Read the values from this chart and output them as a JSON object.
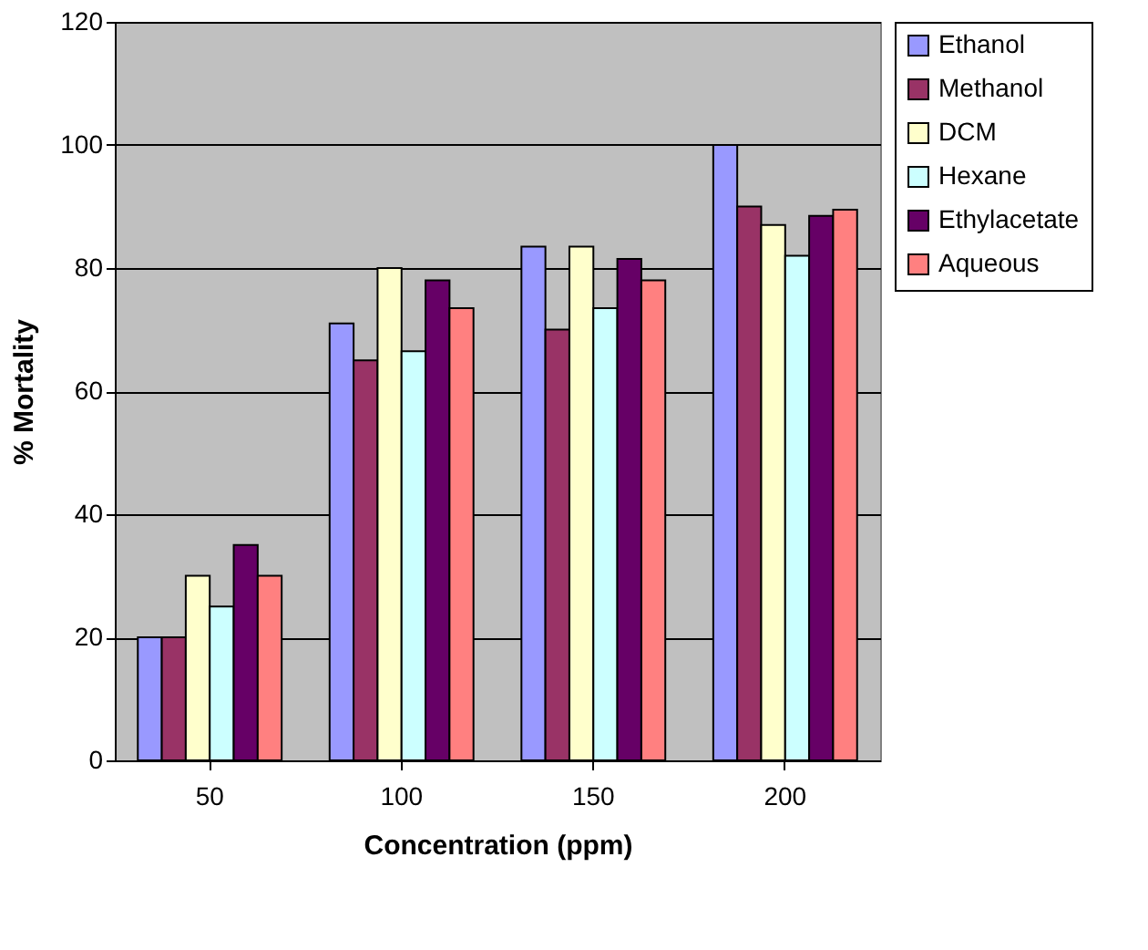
{
  "chart_data": {
    "type": "bar",
    "xlabel": "Concentration (ppm)",
    "ylabel": "% Mortality",
    "categories": [
      "50",
      "100",
      "150",
      "200"
    ],
    "series": [
      {
        "name": "Ethanol",
        "color": "#9999ff",
        "values": [
          20,
          71,
          83.5,
          100
        ]
      },
      {
        "name": "Methanol",
        "color": "#993366",
        "values": [
          20,
          65,
          70,
          90
        ]
      },
      {
        "name": "DCM",
        "color": "#ffffcc",
        "values": [
          30,
          80,
          83.5,
          87
        ]
      },
      {
        "name": "Hexane",
        "color": "#ccffff",
        "values": [
          25,
          66.5,
          73.5,
          82
        ]
      },
      {
        "name": "Ethylacetate",
        "color": "#660066",
        "values": [
          35,
          78,
          81.5,
          88.5
        ]
      },
      {
        "name": "Aqueous",
        "color": "#ff8080",
        "values": [
          30,
          73.5,
          78,
          89.5
        ]
      }
    ],
    "ylim": [
      0,
      120
    ],
    "yticks": [
      0,
      20,
      40,
      60,
      80,
      100,
      120
    ],
    "grid": "y",
    "legend": "right"
  }
}
